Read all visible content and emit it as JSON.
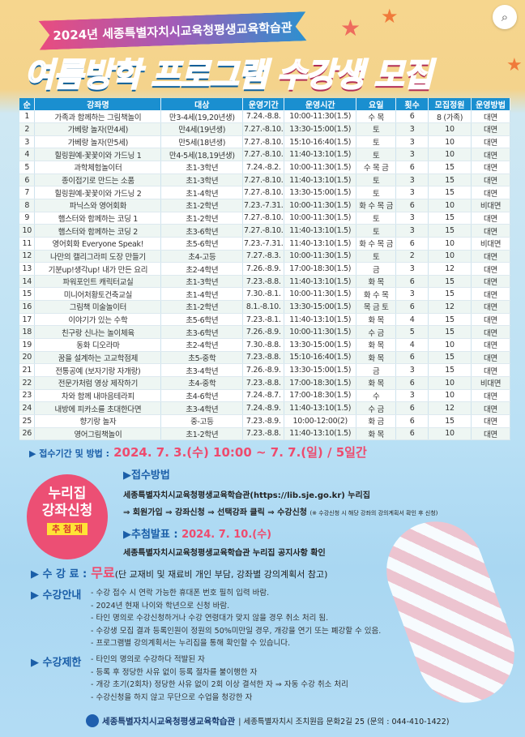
{
  "header": {
    "ribbon": "2024년 세종특별자치시교육청평생교육학습관",
    "title_blue": "여름방학 프로그램",
    "title_pink": "수강생 모집"
  },
  "table": {
    "columns": [
      "순",
      "강좌명",
      "대상",
      "운영기간",
      "운영시간",
      "요일",
      "횟수",
      "모집정원",
      "운영방법"
    ],
    "rows": [
      [
        "1",
        "가족과 함께하는 그림책놀이",
        "만3-4세(19,20년생)",
        "7.24.-8.8.",
        "10:00-11:30(1.5)",
        "수 목",
        "6",
        "8 (가족)",
        "대면"
      ],
      [
        "2",
        "가베랑 놀자(만4세)",
        "만4세(19년생)",
        "7.27.-8.10.",
        "13:30-15:00(1.5)",
        "토",
        "3",
        "10",
        "대면"
      ],
      [
        "3",
        "가베랑 놀자(만5세)",
        "만5세(18년생)",
        "7.27.-8.10.",
        "15:10-16:40(1.5)",
        "토",
        "3",
        "10",
        "대면"
      ],
      [
        "4",
        "힐링원예-꽃꽃이와 가드닝 1",
        "만4-5세(18,19년생)",
        "7.27.-8.10.",
        "11:40-13:10(1.5)",
        "토",
        "3",
        "10",
        "대면"
      ],
      [
        "5",
        "과학체험놀이터",
        "초1-3학년",
        "7.24.-8.2.",
        "10:00-11:30(1.5)",
        "수 목 금",
        "6",
        "15",
        "대면"
      ],
      [
        "6",
        "종이접기로 만드는 소품",
        "초1-3학년",
        "7.27.-8.10.",
        "11:40-13:10(1.5)",
        "토",
        "3",
        "15",
        "대면"
      ],
      [
        "7",
        "힐링원예-꽃꽃이와 가드닝 2",
        "초1-4학년",
        "7.27.-8.10.",
        "13:30-15:00(1.5)",
        "토",
        "3",
        "15",
        "대면"
      ],
      [
        "8",
        "파닉스와 영어회화",
        "초1-2학년",
        "7.23.-7.31.",
        "10:00-11:30(1.5)",
        "화 수 목 금",
        "6",
        "10",
        "비대면"
      ],
      [
        "9",
        "햄스터와 함께하는 코딩 1",
        "초1-2학년",
        "7.27.-8.10.",
        "10:00-11:30(1.5)",
        "토",
        "3",
        "15",
        "대면"
      ],
      [
        "10",
        "햄스터와 함께하는 코딩 2",
        "초3-6학년",
        "7.27.-8.10.",
        "11:40-13:10(1.5)",
        "토",
        "3",
        "15",
        "대면"
      ],
      [
        "11",
        "영어회화 Everyone Speak!",
        "초5-6학년",
        "7.23.-7.31.",
        "11:40-13:10(1.5)",
        "화 수 목 금",
        "6",
        "10",
        "비대면"
      ],
      [
        "12",
        "나만의 캘리그라피 도장 만들기",
        "초4-고등",
        "7.27.-8.3.",
        "10:00-11:30(1.5)",
        "토",
        "2",
        "10",
        "대면"
      ],
      [
        "13",
        "기분up!생각up! 내가 만든 요리",
        "초2-4학년",
        "7.26.-8.9.",
        "17:00-18:30(1.5)",
        "금",
        "3",
        "12",
        "대면"
      ],
      [
        "14",
        "파워포인트 캐릭터교실",
        "초1-3학년",
        "7.23.-8.8.",
        "11:40-13:10(1.5)",
        "화 목",
        "6",
        "15",
        "대면"
      ],
      [
        "15",
        "미니어처황토건축교실",
        "초1-4학년",
        "7.30.-8.1.",
        "10:00-11:30(1.5)",
        "화 수 목",
        "3",
        "15",
        "대면"
      ],
      [
        "16",
        "그림책 미술놀이터",
        "초1-2학년",
        "8.1.-8.10.",
        "13:30-15:00(1.5)",
        "목 금 토",
        "6",
        "12",
        "대면"
      ],
      [
        "17",
        "이야기가 있는 수학",
        "초5-6학년",
        "7.23.-8.1.",
        "11:40-13:10(1.5)",
        "화 목",
        "4",
        "15",
        "대면"
      ],
      [
        "18",
        "친구랑 신나는 놀이체육",
        "초3-6학년",
        "7.26.-8.9.",
        "10:00-11:30(1.5)",
        "수 금",
        "5",
        "15",
        "대면"
      ],
      [
        "19",
        "동화 디오라마",
        "초2-4학년",
        "7.30.-8.8.",
        "13:30-15:00(1.5)",
        "화 목",
        "4",
        "10",
        "대면"
      ],
      [
        "20",
        "꿈을 설계하는 고교학점제",
        "초5-중학",
        "7.23.-8.8.",
        "15:10-16:40(1.5)",
        "화 목",
        "6",
        "15",
        "대면"
      ],
      [
        "21",
        "전통공예 (보자기랑 자개랑)",
        "초3-4학년",
        "7.26.-8.9.",
        "13:30-15:00(1.5)",
        "금",
        "3",
        "15",
        "대면"
      ],
      [
        "22",
        "전문가처럼 영상 제작하기",
        "초4-중학",
        "7.23.-8.8.",
        "17:00-18:30(1.5)",
        "화 목",
        "6",
        "10",
        "비대면"
      ],
      [
        "23",
        "차와 함께 내마음테라피",
        "초4-6학년",
        "7.24.-8.7.",
        "17:00-18:30(1.5)",
        "수",
        "3",
        "10",
        "대면"
      ],
      [
        "24",
        "내방에 피카소를 초대한다면",
        "초3-4학년",
        "7.24.-8.9.",
        "11:40-13:10(1.5)",
        "수 금",
        "6",
        "12",
        "대면"
      ],
      [
        "25",
        "향기랑 놀자",
        "중-고등",
        "7.23.-8.9.",
        "10:00-12:00(2)",
        "화 금",
        "6",
        "15",
        "대면"
      ],
      [
        "26",
        "영어그림책놀이",
        "초1-2학년",
        "7.23.-8.8.",
        "11:40-13:10(1.5)",
        "화 목",
        "6",
        "10",
        "대면"
      ]
    ]
  },
  "registration": {
    "label": "▶ 접수기간 및 방법 :",
    "period": "2024. 7. 3.(수) 10:00 ~ 7. 7.(일) / 5일간"
  },
  "badge": {
    "line1": "누리집",
    "line2": "강좌신청",
    "lottery": "추 첨 제"
  },
  "method": {
    "title": "▶접수방법",
    "line1": "세종특별자치시교육청평생교육학습관(https://lib.sje.go.kr)  누리집",
    "line2": "⇒ 회원가입 ⇒ 강좌신청 ⇒ 선택강좌 클릭 ⇒ 수강신청",
    "line2_note": "(※ 수강신청 시 해당 강좌의 강의계획서 확인 후 신청)"
  },
  "announce": {
    "title": "▶추첨발표 :",
    "date": "2024. 7. 10.(수)",
    "text": "세종특별자치시교육청평생교육학습관 누리집 공지사항 확인"
  },
  "fee": {
    "label": "▶ 수 강 료 :",
    "value": "무료",
    "note": "(단 교재비 및 재료비 개인 부담, 강좌별 강의계획서 참고)"
  },
  "guide": {
    "label": "▶ 수강안내",
    "items": [
      "- 수강 접수 시 연락 가능한 휴대폰 번호 필히 입력 바람.",
      "- 2024년 현재 나이와 학년으로 신청 바람.",
      "- 타인 명의로 수강신청하거나 수강 연령대가 맞지 않을 경우 취소 처리 됨.",
      "- 수강생 모집 결과 등록인원이 정원의 50%미만일 경우, 개강을 연기 또는 폐강할 수 있음.",
      "- 프로그램별 강의계획서는 누리집을 통해 확인할 수 있습니다."
    ]
  },
  "limit": {
    "label": "▶ 수강제한",
    "items": [
      "- 타인의 명의로 수강하다 적발된 자",
      "- 등록 후 정당한 사유 없이 등록 절차를 불이행한 자",
      "- 개강 초기(2회차) 정당한 사유 없이 2회 이상 결석한 자 ⇒ 자동 수강 취소 처리",
      "- 수강신청을 하지 않고 무단으로 수업을 청강한 자"
    ]
  },
  "footer": {
    "org": "세종특별자치시교육청평생교육학습관",
    "address": "| 세종특별자치시 조치원읍 문화2길 25 (문의 : 044-410-1422)"
  },
  "colors": {
    "header_blue": "#1a8fd0",
    "accent_pink": "#ee4b6e",
    "sand": "#f6d68e",
    "sky": "#b9e0f5"
  }
}
